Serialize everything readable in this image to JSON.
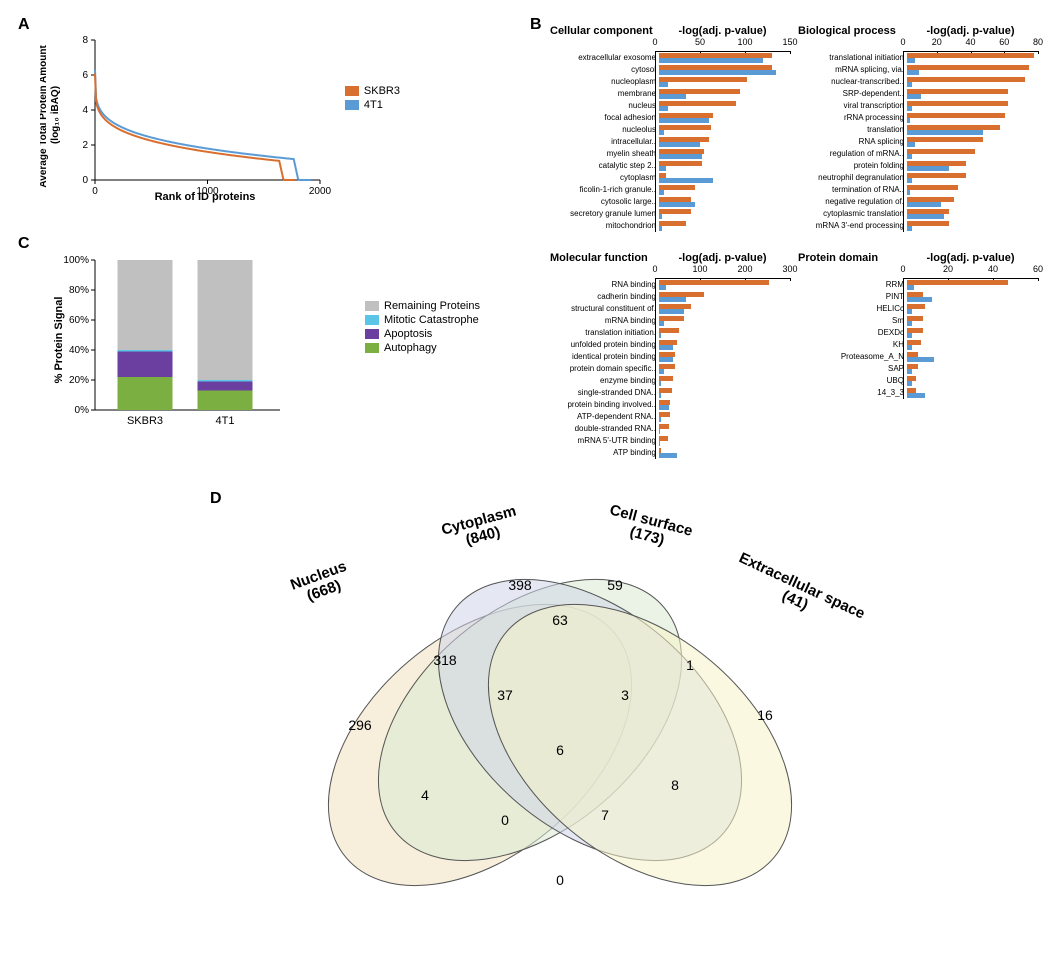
{
  "colors": {
    "skbr3": "#d96f2f",
    "t41": "#5b9bd5",
    "remaining": "#c0c0c0",
    "mitotic": "#5bc5e8",
    "apoptosis": "#6a3fa0",
    "autophagy": "#7caf42",
    "venn_nucleus": "#f0e2c0",
    "venn_cytoplasm": "#d8ead0",
    "venn_cellsurf": "#cfd6ea",
    "venn_extra": "#f5f2c8",
    "axis": "#000000"
  },
  "panelA": {
    "label": "A",
    "ylabel": "Average Total Protein Amount\n(log₁₀ iBAQ)",
    "xlabel": "Rank of ID proteins",
    "xlim": [
      0,
      2000
    ],
    "ylim": [
      0,
      8
    ],
    "xticks": [
      0,
      1000,
      2000
    ],
    "yticks": [
      0,
      2,
      4,
      6,
      8
    ],
    "legend": [
      {
        "label": "SKBR3",
        "color": "#d96f2f"
      },
      {
        "label": "4T1",
        "color": "#5b9bd5"
      }
    ],
    "skbr3_rank_max": 1780,
    "t41_rank_max": 1920
  },
  "panelB": {
    "label": "B",
    "charts": [
      {
        "title": "Cellular component",
        "axislabel": "-log(adj. p-value)",
        "xmax": 150,
        "xticks": [
          0,
          50,
          100,
          150
        ],
        "rows": [
          {
            "cat": "extracellular exosome",
            "s": 125,
            "t": 115
          },
          {
            "cat": "cytosol",
            "s": 125,
            "t": 130
          },
          {
            "cat": "nucleoplasm",
            "s": 98,
            "t": 10
          },
          {
            "cat": "membrane",
            "s": 90,
            "t": 30
          },
          {
            "cat": "nucleus",
            "s": 85,
            "t": 10
          },
          {
            "cat": "focal adhesion",
            "s": 60,
            "t": 55
          },
          {
            "cat": "nucleolus",
            "s": 58,
            "t": 5
          },
          {
            "cat": "intracellular..",
            "s": 55,
            "t": 45
          },
          {
            "cat": "myelin sheath",
            "s": 50,
            "t": 48
          },
          {
            "cat": "catalytic step 2..",
            "s": 48,
            "t": 8
          },
          {
            "cat": "cytoplasm",
            "s": 8,
            "t": 60
          },
          {
            "cat": "ficolin-1-rich granule..",
            "s": 40,
            "t": 5
          },
          {
            "cat": "cytosolic large..",
            "s": 35,
            "t": 40
          },
          {
            "cat": "secretory granule lumen",
            "s": 35,
            "t": 3
          },
          {
            "cat": "mitochondrion",
            "s": 30,
            "t": 3
          }
        ]
      },
      {
        "title": "Biological process",
        "axislabel": "-log(adj. p-value)",
        "xmax": 80,
        "xticks": [
          0,
          20,
          40,
          60,
          80
        ],
        "rows": [
          {
            "cat": "translational initiation",
            "s": 75,
            "t": 5
          },
          {
            "cat": "mRNA splicing, via.",
            "s": 72,
            "t": 7
          },
          {
            "cat": "nuclear-transcribed..",
            "s": 70,
            "t": 3
          },
          {
            "cat": "SRP-dependent..",
            "s": 60,
            "t": 8
          },
          {
            "cat": "viral transcription",
            "s": 60,
            "t": 3
          },
          {
            "cat": "rRNA processing",
            "s": 58,
            "t": 2
          },
          {
            "cat": "translation",
            "s": 55,
            "t": 45
          },
          {
            "cat": "RNA splicing",
            "s": 45,
            "t": 5
          },
          {
            "cat": "regulation of mRNA..",
            "s": 40,
            "t": 3
          },
          {
            "cat": "protein folding",
            "s": 35,
            "t": 25
          },
          {
            "cat": "neutrophil degranulation",
            "s": 35,
            "t": 3
          },
          {
            "cat": "termination of RNA..",
            "s": 30,
            "t": 2
          },
          {
            "cat": "negative regulation of.",
            "s": 28,
            "t": 20
          },
          {
            "cat": "cytoplasmic translation",
            "s": 25,
            "t": 22
          },
          {
            "cat": "mRNA 3'-end processing",
            "s": 25,
            "t": 3
          }
        ]
      },
      {
        "title": "Molecular function",
        "axislabel": "-log(adj. p-value)",
        "xmax": 300,
        "xticks": [
          0,
          100,
          200,
          300
        ],
        "rows": [
          {
            "cat": "RNA binding",
            "s": 245,
            "t": 15
          },
          {
            "cat": "cadherin binding",
            "s": 100,
            "t": 60
          },
          {
            "cat": "structural constituent of.",
            "s": 70,
            "t": 55
          },
          {
            "cat": "mRNA binding",
            "s": 55,
            "t": 10
          },
          {
            "cat": "translation initiation.",
            "s": 45,
            "t": 5
          },
          {
            "cat": "unfolded protein binding",
            "s": 40,
            "t": 30
          },
          {
            "cat": "identical protein binding",
            "s": 35,
            "t": 30
          },
          {
            "cat": "protein domain specific..",
            "s": 35,
            "t": 10
          },
          {
            "cat": "enzyme binding",
            "s": 30,
            "t": 5
          },
          {
            "cat": "single-stranded DNA..",
            "s": 28,
            "t": 5
          },
          {
            "cat": "protein binding involved..",
            "s": 25,
            "t": 22
          },
          {
            "cat": "ATP-dependent RNA..",
            "s": 25,
            "t": 5
          },
          {
            "cat": "double-stranded RNA..",
            "s": 22,
            "t": 3
          },
          {
            "cat": "mRNA 5'-UTR binding",
            "s": 20,
            "t": 3
          },
          {
            "cat": "ATP binding",
            "s": 5,
            "t": 40
          }
        ]
      },
      {
        "title": "Protein domain",
        "axislabel": "-log(adj. p-value)",
        "xmax": 60,
        "xticks": [
          0,
          20,
          40,
          60
        ],
        "rows": [
          {
            "cat": "RRM",
            "s": 45,
            "t": 3
          },
          {
            "cat": "PINT",
            "s": 7,
            "t": 11
          },
          {
            "cat": "HELICc",
            "s": 8,
            "t": 2
          },
          {
            "cat": "Sm",
            "s": 7,
            "t": 2
          },
          {
            "cat": "DEXDc",
            "s": 7,
            "t": 2
          },
          {
            "cat": "KH",
            "s": 6,
            "t": 2
          },
          {
            "cat": "Proteasome_A_N",
            "s": 5,
            "t": 12
          },
          {
            "cat": "SAP",
            "s": 5,
            "t": 2
          },
          {
            "cat": "UBQ",
            "s": 4,
            "t": 2
          },
          {
            "cat": "14_3_3",
            "s": 4,
            "t": 8
          }
        ]
      }
    ]
  },
  "panelC": {
    "label": "C",
    "ylabel": "% Protein Signal",
    "yticks": [
      "0%",
      "20%",
      "40%",
      "60%",
      "80%",
      "100%"
    ],
    "bars": [
      {
        "label": "SKBR3",
        "autophagy": 22,
        "apoptosis": 17,
        "mitotic": 1,
        "remaining": 60
      },
      {
        "label": "4T1",
        "autophagy": 13,
        "apoptosis": 6,
        "mitotic": 1,
        "remaining": 80
      }
    ],
    "legend": [
      {
        "label": "Remaining Proteins",
        "color": "#c0c0c0"
      },
      {
        "label": "Mitotic Catastrophe",
        "color": "#5bc5e8"
      },
      {
        "label": "Apoptosis",
        "color": "#6a3fa0"
      },
      {
        "label": "Autophagy",
        "color": "#7caf42"
      }
    ]
  },
  "panelD": {
    "label": "D",
    "sets": [
      {
        "name": "Nucleus",
        "count": 668
      },
      {
        "name": "Cytoplasm",
        "count": 840
      },
      {
        "name": "Cell surface",
        "count": 173
      },
      {
        "name": "Extracellular space",
        "count": 41
      }
    ],
    "regions": {
      "nucleus_only": 296,
      "cytoplasm_only": 398,
      "cellsurf_only": 59,
      "extra_only": 16,
      "nuc_cyt": 318,
      "cyt_surf": 63,
      "surf_ext": 1,
      "nuc_surf": 4,
      "cyt_ext": 8,
      "nuc_ext": 0,
      "nuc_cyt_surf": 37,
      "cyt_surf_ext": 3,
      "nuc_cyt_ext": 7,
      "nuc_surf_ext": 0,
      "all4": 6
    }
  }
}
